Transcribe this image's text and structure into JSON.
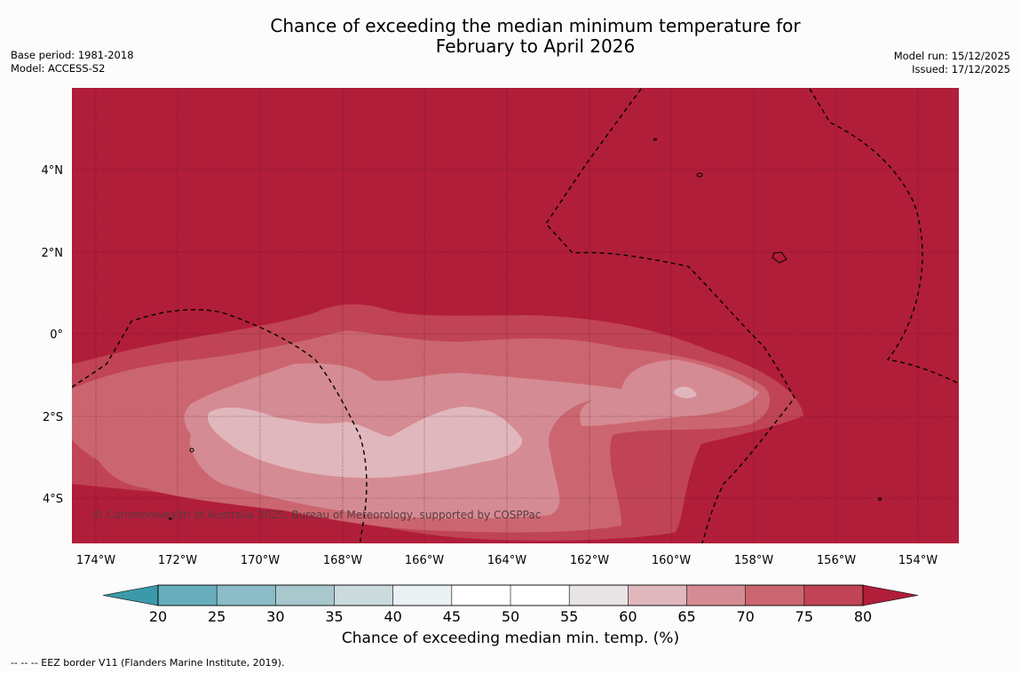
{
  "title": {
    "line1": "Chance of exceeding the median minimum temperature for",
    "line2": "February to April 2026"
  },
  "meta_left": {
    "base_period": "Base period: 1981-2018",
    "model": "Model: ACCESS-S2"
  },
  "meta_right": {
    "model_run": "Model run: 15/12/2025",
    "issued": "Issued: 17/12/2025"
  },
  "map": {
    "lon_labels": [
      "174°W",
      "172°W",
      "170°W",
      "168°W",
      "166°W",
      "164°W",
      "162°W",
      "160°W",
      "158°W",
      "156°W",
      "154°W"
    ],
    "lat_labels": [
      "4°N",
      "2°N",
      "0°",
      "2°S",
      "4°S"
    ],
    "copyright": "© Commonwealth of Australia 2025, Bureau of Meteorology, supported by COSPPac",
    "colors": {
      "above_80": "#b11e3a",
      "75_80": "#c04455",
      "70_75": "#cb6670",
      "65_70": "#d58b93",
      "60_65": "#e0b7bc"
    }
  },
  "colorbar": {
    "ticks": [
      "20",
      "25",
      "30",
      "35",
      "40",
      "45",
      "50",
      "55",
      "60",
      "65",
      "70",
      "75",
      "80"
    ],
    "colors": [
      "#3b9aaa",
      "#68adbd",
      "#8bbcc7",
      "#a8c8cd",
      "#cbdadd",
      "#e9f1f2",
      "#ffffff",
      "#ffffff",
      "#e8e4e5",
      "#e0b7bc",
      "#d58b93",
      "#cb6670",
      "#c04455",
      "#b11e3a"
    ],
    "title": "Chance of exceeding median min. temp. (%)"
  },
  "footer": "--  --  -- EEZ border V11 (Flanders Marine Institute, 2019)."
}
